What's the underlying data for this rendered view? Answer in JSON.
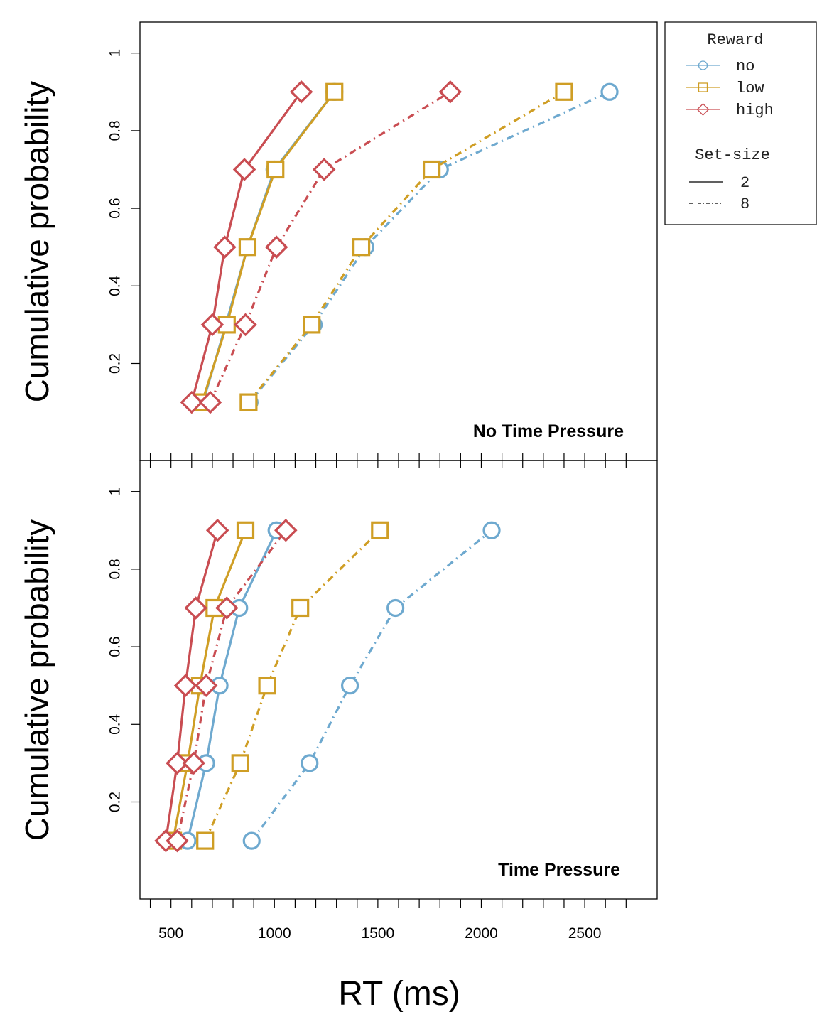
{
  "chart_data": {
    "type": "line",
    "xlabel": "RT (ms)",
    "ylabel": "Cumulative probability",
    "xlim": [
      350,
      2850
    ],
    "ylim": [
      -0.05,
      1.08
    ],
    "xticks": [
      400,
      500,
      600,
      700,
      800,
      900,
      1000,
      1100,
      1200,
      1300,
      1400,
      1500,
      1600,
      1700,
      1800,
      1900,
      2000,
      2100,
      2200,
      2300,
      2400,
      2500,
      2600,
      2700
    ],
    "xtick_labels": [
      {
        "value": 500,
        "label": "500"
      },
      {
        "value": 1000,
        "label": "1000"
      },
      {
        "value": 1500,
        "label": "1500"
      },
      {
        "value": 2000,
        "label": "2000"
      },
      {
        "value": 2500,
        "label": "2500"
      }
    ],
    "yticks": [
      {
        "value": 0.2,
        "label": "0.2"
      },
      {
        "value": 0.4,
        "label": "0.4"
      },
      {
        "value": 0.6,
        "label": "0.6"
      },
      {
        "value": 0.8,
        "label": "0.8"
      },
      {
        "value": 1.0,
        "label": "1"
      }
    ],
    "colors": {
      "no": "#6ea9cf",
      "low": "#cf9e25",
      "high": "#c94d52"
    },
    "legend": {
      "reward_title": "Reward",
      "reward_items": [
        {
          "key": "no",
          "label": "no",
          "marker": "circle"
        },
        {
          "key": "low",
          "label": "low",
          "marker": "square"
        },
        {
          "key": "high",
          "label": "high",
          "marker": "diamond"
        }
      ],
      "setsize_title": "Set-size",
      "setsize_items": [
        {
          "label": "2",
          "style": "solid"
        },
        {
          "label": "8",
          "style": "dashdot"
        }
      ]
    },
    "panels": [
      {
        "title": "No Time Pressure",
        "series": [
          {
            "reward": "no",
            "setsize": "2",
            "x": [
              655,
              765,
              870,
              1000,
              1290
            ],
            "y": [
              0.1,
              0.3,
              0.5,
              0.7,
              0.9
            ]
          },
          {
            "reward": "low",
            "setsize": "2",
            "x": [
              650,
              770,
              870,
              1005,
              1290
            ],
            "y": [
              0.1,
              0.3,
              0.5,
              0.7,
              0.9
            ]
          },
          {
            "reward": "high",
            "setsize": "2",
            "x": [
              600,
              700,
              760,
              855,
              1130
            ],
            "y": [
              0.1,
              0.3,
              0.5,
              0.7,
              0.9
            ]
          },
          {
            "reward": "no",
            "setsize": "8",
            "x": [
              880,
              1190,
              1440,
              1800,
              2620
            ],
            "y": [
              0.1,
              0.3,
              0.5,
              0.7,
              0.9
            ]
          },
          {
            "reward": "low",
            "setsize": "8",
            "x": [
              875,
              1180,
              1420,
              1760,
              2400
            ],
            "y": [
              0.1,
              0.3,
              0.5,
              0.7,
              0.9
            ]
          },
          {
            "reward": "high",
            "setsize": "8",
            "x": [
              690,
              860,
              1010,
              1240,
              1850
            ],
            "y": [
              0.1,
              0.3,
              0.5,
              0.7,
              0.9
            ]
          }
        ]
      },
      {
        "title": "Time Pressure",
        "series": [
          {
            "reward": "no",
            "setsize": "2",
            "x": [
              580,
              670,
              735,
              830,
              1010
            ],
            "y": [
              0.1,
              0.3,
              0.5,
              0.7,
              0.9
            ]
          },
          {
            "reward": "low",
            "setsize": "2",
            "x": [
              510,
              580,
              640,
              710,
              860
            ],
            "y": [
              0.1,
              0.3,
              0.5,
              0.7,
              0.9
            ]
          },
          {
            "reward": "high",
            "setsize": "2",
            "x": [
              475,
              530,
              570,
              620,
              725
            ],
            "y": [
              0.1,
              0.3,
              0.5,
              0.7,
              0.9
            ]
          },
          {
            "reward": "no",
            "setsize": "8",
            "x": [
              890,
              1170,
              1365,
              1585,
              2050
            ],
            "y": [
              0.1,
              0.3,
              0.5,
              0.7,
              0.9
            ]
          },
          {
            "reward": "low",
            "setsize": "8",
            "x": [
              665,
              835,
              965,
              1125,
              1510
            ],
            "y": [
              0.1,
              0.3,
              0.5,
              0.7,
              0.9
            ]
          },
          {
            "reward": "high",
            "setsize": "8",
            "x": [
              530,
              610,
              670,
              770,
              1055
            ],
            "y": [
              0.1,
              0.3,
              0.5,
              0.7,
              0.9
            ]
          }
        ]
      }
    ]
  }
}
